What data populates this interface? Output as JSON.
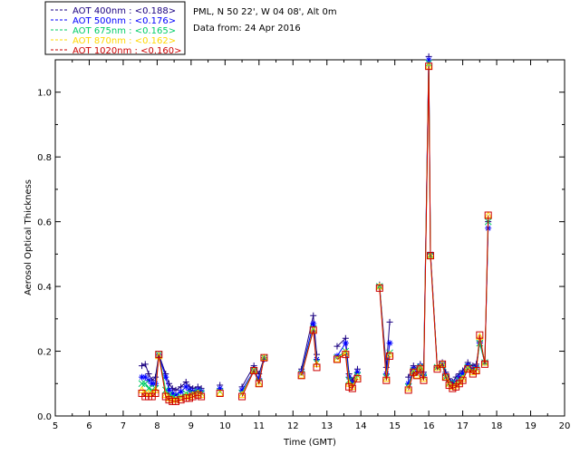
{
  "info": {
    "location": "PML, N 50 22', W 04 08', Alt 0m",
    "data_from": "Data from: 24 Apr 2016"
  },
  "chart_data": {
    "type": "line",
    "xlabel": "Time (GMT)",
    "ylabel": "Aerosol Optical Thickness",
    "xlim": [
      5,
      20
    ],
    "ylim": [
      0,
      1.1
    ],
    "x_ticks": [
      5,
      6,
      7,
      8,
      9,
      10,
      11,
      12,
      13,
      14,
      15,
      16,
      17,
      18,
      19,
      20
    ],
    "y_ticks": [
      0.0,
      0.2,
      0.4,
      0.6,
      0.8,
      1.0
    ],
    "y_tick_labels": [
      "0.0",
      "0.2",
      "0.4",
      "0.6",
      "0.8",
      "1.0"
    ],
    "grid": false,
    "legend_position": "top-left",
    "x": [
      7.55,
      7.65,
      7.75,
      7.85,
      7.95,
      8.05,
      8.25,
      8.35,
      8.45,
      8.55,
      8.7,
      8.85,
      8.95,
      9.05,
      9.2,
      9.3,
      9.85,
      10.5,
      10.85,
      11.0,
      11.15,
      12.25,
      12.6,
      12.7,
      13.3,
      13.55,
      13.65,
      13.75,
      13.9,
      14.55,
      14.75,
      14.85,
      15.4,
      15.55,
      15.65,
      15.75,
      15.85,
      16.0,
      16.05,
      16.25,
      16.4,
      16.5,
      16.6,
      16.7,
      16.8,
      16.9,
      17.0,
      17.15,
      17.3,
      17.4,
      17.5,
      17.65,
      17.75
    ],
    "series": [
      {
        "name": "AOT  400nm : <0.188>",
        "color": "#1a0080",
        "marker": "plus",
        "values": [
          0.155,
          0.16,
          0.13,
          0.11,
          0.12,
          0.19,
          0.13,
          0.1,
          0.085,
          0.08,
          0.09,
          0.105,
          0.09,
          0.085,
          0.09,
          0.085,
          0.095,
          0.09,
          0.155,
          0.13,
          0.18,
          0.145,
          0.31,
          0.19,
          0.215,
          0.24,
          0.13,
          0.11,
          0.145,
          0.405,
          0.15,
          0.29,
          0.12,
          0.155,
          0.145,
          0.16,
          0.135,
          1.11,
          0.505,
          0.155,
          0.165,
          0.135,
          0.115,
          0.105,
          0.12,
          0.13,
          0.14,
          0.165,
          0.155,
          0.16,
          0.23,
          0.17,
          0.6
        ]
      },
      {
        "name": "AOT  500nm : <0.176>",
        "color": "#0000ff",
        "marker": "asterisk",
        "values": [
          0.12,
          0.12,
          0.11,
          0.1,
          0.1,
          0.185,
          0.12,
          0.08,
          0.07,
          0.065,
          0.075,
          0.09,
          0.08,
          0.075,
          0.08,
          0.075,
          0.085,
          0.08,
          0.14,
          0.115,
          0.175,
          0.135,
          0.285,
          0.175,
          0.185,
          0.225,
          0.12,
          0.1,
          0.135,
          0.4,
          0.13,
          0.225,
          0.1,
          0.145,
          0.135,
          0.155,
          0.125,
          1.1,
          0.5,
          0.15,
          0.16,
          0.125,
          0.105,
          0.1,
          0.105,
          0.12,
          0.13,
          0.155,
          0.145,
          0.15,
          0.225,
          0.165,
          0.58
        ]
      },
      {
        "name": "AOT  675nm : <0.165>",
        "color": "#00cc66",
        "marker": "x",
        "values": [
          0.1,
          0.1,
          0.085,
          0.08,
          0.085,
          0.19,
          0.08,
          0.065,
          0.06,
          0.055,
          0.06,
          0.07,
          0.065,
          0.07,
          0.075,
          0.07,
          0.075,
          0.07,
          0.14,
          0.105,
          0.18,
          0.13,
          0.27,
          0.165,
          0.18,
          0.2,
          0.11,
          0.095,
          0.125,
          0.4,
          0.12,
          0.195,
          0.09,
          0.14,
          0.13,
          0.15,
          0.12,
          1.09,
          0.495,
          0.15,
          0.155,
          0.12,
          0.1,
          0.095,
          0.1,
          0.11,
          0.12,
          0.15,
          0.14,
          0.145,
          0.225,
          0.165,
          0.6
        ]
      },
      {
        "name": "AOT  870nm : <0.162>",
        "color": "#ffd700",
        "marker": "triangle",
        "values": [
          0.08,
          0.07,
          0.07,
          0.07,
          0.08,
          0.185,
          0.065,
          0.055,
          0.05,
          0.05,
          0.055,
          0.06,
          0.06,
          0.065,
          0.07,
          0.065,
          0.07,
          0.065,
          0.14,
          0.1,
          0.18,
          0.125,
          0.265,
          0.16,
          0.175,
          0.195,
          0.1,
          0.09,
          0.12,
          0.4,
          0.115,
          0.19,
          0.085,
          0.135,
          0.125,
          0.15,
          0.115,
          1.08,
          0.495,
          0.15,
          0.16,
          0.12,
          0.1,
          0.09,
          0.095,
          0.105,
          0.115,
          0.145,
          0.135,
          0.14,
          0.245,
          0.165,
          0.62
        ]
      },
      {
        "name": "AOT 1020nm : <0.160>",
        "color": "#cc0000",
        "marker": "square",
        "values": [
          0.07,
          0.06,
          0.06,
          0.06,
          0.07,
          0.19,
          0.06,
          0.05,
          0.045,
          0.045,
          0.05,
          0.055,
          0.055,
          0.06,
          0.065,
          0.06,
          0.07,
          0.06,
          0.14,
          0.1,
          0.18,
          0.125,
          0.265,
          0.15,
          0.175,
          0.19,
          0.09,
          0.085,
          0.115,
          0.395,
          0.11,
          0.185,
          0.08,
          0.135,
          0.125,
          0.145,
          0.11,
          1.08,
          0.495,
          0.145,
          0.16,
          0.12,
          0.095,
          0.085,
          0.09,
          0.1,
          0.11,
          0.145,
          0.13,
          0.14,
          0.25,
          0.16,
          0.62
        ]
      }
    ]
  }
}
